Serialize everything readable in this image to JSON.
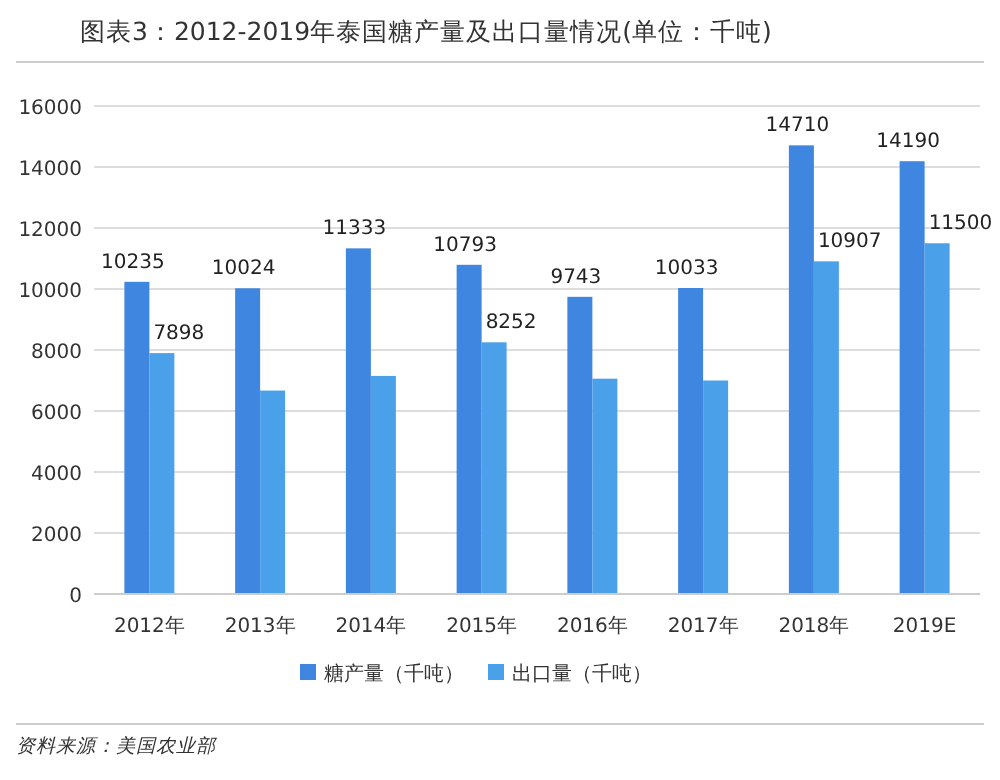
{
  "chart_data": {
    "type": "bar",
    "title": "图表3：2012-2019年泰国糖产量及出口量情况(单位：千吨)",
    "categories": [
      "2012年",
      "2013年",
      "2014年",
      "2015年",
      "2016年",
      "2017年",
      "2018年",
      "2019E"
    ],
    "series": [
      {
        "name": "糖产量（千吨）",
        "color": "#3f86e0",
        "values": [
          10235,
          10024,
          11333,
          10793,
          9743,
          10033,
          14710,
          14190
        ],
        "value_labels": [
          "10235",
          "10024",
          "11333",
          "10793",
          "9743",
          "10033",
          "14710",
          "14190"
        ]
      },
      {
        "name": "出口量（千吨）",
        "color": "#4ba0ea",
        "values": [
          7898,
          6670,
          7150,
          8252,
          7060,
          7000,
          10907,
          11500
        ],
        "value_labels": [
          "7898",
          null,
          null,
          "8252",
          null,
          null,
          "10907",
          "11500"
        ]
      }
    ],
    "ylim": [
      0,
      16000
    ],
    "yticks": [
      0,
      2000,
      4000,
      6000,
      8000,
      10000,
      12000,
      14000,
      16000
    ],
    "grid": "y",
    "legend": "bottom",
    "annotations": [
      "资料来源：美国农业部"
    ]
  }
}
